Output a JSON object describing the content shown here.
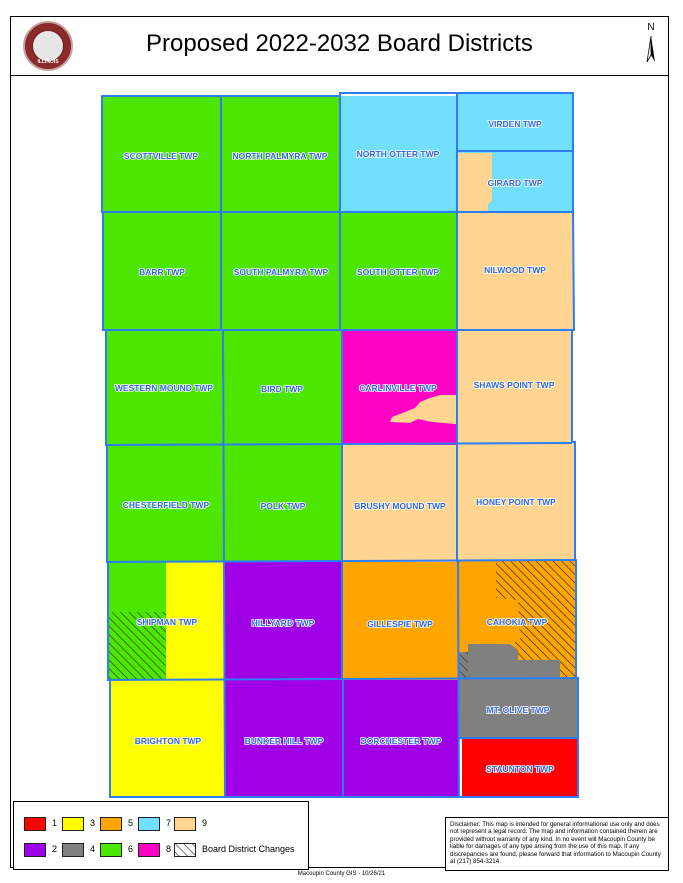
{
  "title": "Proposed 2022-2032 Board Districts",
  "north_label": "N",
  "seal_text": "ILLINOIS",
  "colors": {
    "d1": "#ff0000",
    "d2": "#a000e6",
    "d3": "#ffff00",
    "d4": "#808080",
    "d5": "#ffa500",
    "d6": "#4de600",
    "d7": "#73dfff",
    "d8": "#ff00c5",
    "d9": "#ffd591",
    "boundary": "#2f7df6"
  },
  "townships": [
    {
      "name": "SCOTTVILLE TWP",
      "district": "6"
    },
    {
      "name": "NORTH PALMYRA TWP",
      "district": "6"
    },
    {
      "name": "NORTH OTTER TWP",
      "district": "7"
    },
    {
      "name": "VIRDEN TWP",
      "district": "7"
    },
    {
      "name": "GIRARD TWP",
      "district": "7"
    },
    {
      "name": "BARR TWP",
      "district": "6"
    },
    {
      "name": "SOUTH PALMYRA TWP",
      "district": "6"
    },
    {
      "name": "SOUTH OTTER TWP",
      "district": "6"
    },
    {
      "name": "NILWOOD TWP",
      "district": "9"
    },
    {
      "name": "WESTERN MOUND TWP",
      "district": "6"
    },
    {
      "name": "BIRD TWP",
      "district": "6"
    },
    {
      "name": "CARLINVILLE TWP",
      "district": "8"
    },
    {
      "name": "SHAWS POINT TWP",
      "district": "9"
    },
    {
      "name": "CHESTERFIELD TWP",
      "district": "6"
    },
    {
      "name": "POLK TWP",
      "district": "6"
    },
    {
      "name": "BRUSHY MOUND TWP",
      "district": "9"
    },
    {
      "name": "HONEY POINT TWP",
      "district": "9"
    },
    {
      "name": "SHIPMAN TWP",
      "district": "3"
    },
    {
      "name": "HILLYARD TWP",
      "district": "2"
    },
    {
      "name": "GILLESPIE TWP",
      "district": "5"
    },
    {
      "name": "CAHOKIA TWP",
      "district": "5"
    },
    {
      "name": "BRIGHTON TWP",
      "district": "3"
    },
    {
      "name": "BUNKER HILL TWP",
      "district": "2"
    },
    {
      "name": "DORCHESTER TWP",
      "district": "2"
    },
    {
      "name": "MT. OLIVE TWP",
      "district": "4"
    },
    {
      "name": "STAUNTON TWP",
      "district": "1"
    }
  ],
  "legend": {
    "items": [
      {
        "label": "1",
        "color": "#ff0000"
      },
      {
        "label": "3",
        "color": "#ffff00"
      },
      {
        "label": "5",
        "color": "#ffa500"
      },
      {
        "label": "7",
        "color": "#73dfff"
      },
      {
        "label": "9",
        "color": "#ffd591"
      },
      {
        "label": "2",
        "color": "#a000e6"
      },
      {
        "label": "4",
        "color": "#808080"
      },
      {
        "label": "6",
        "color": "#4de600"
      },
      {
        "label": "8",
        "color": "#ff00c5"
      }
    ],
    "changes_label": "Board District Changes"
  },
  "disclaimer": "Disclaimer: This map is intended for general informational use only and does not represent a legal record. The map and information contained therein are provided without warranty of any kind. In no event will Macoupin County be liable for damages of any type arising from the use of this map. If any discrepancies are found, please forward that information to Macoupin County at (217) 854-3214.",
  "credit": "Macoupin County GIS - 10/26/21"
}
